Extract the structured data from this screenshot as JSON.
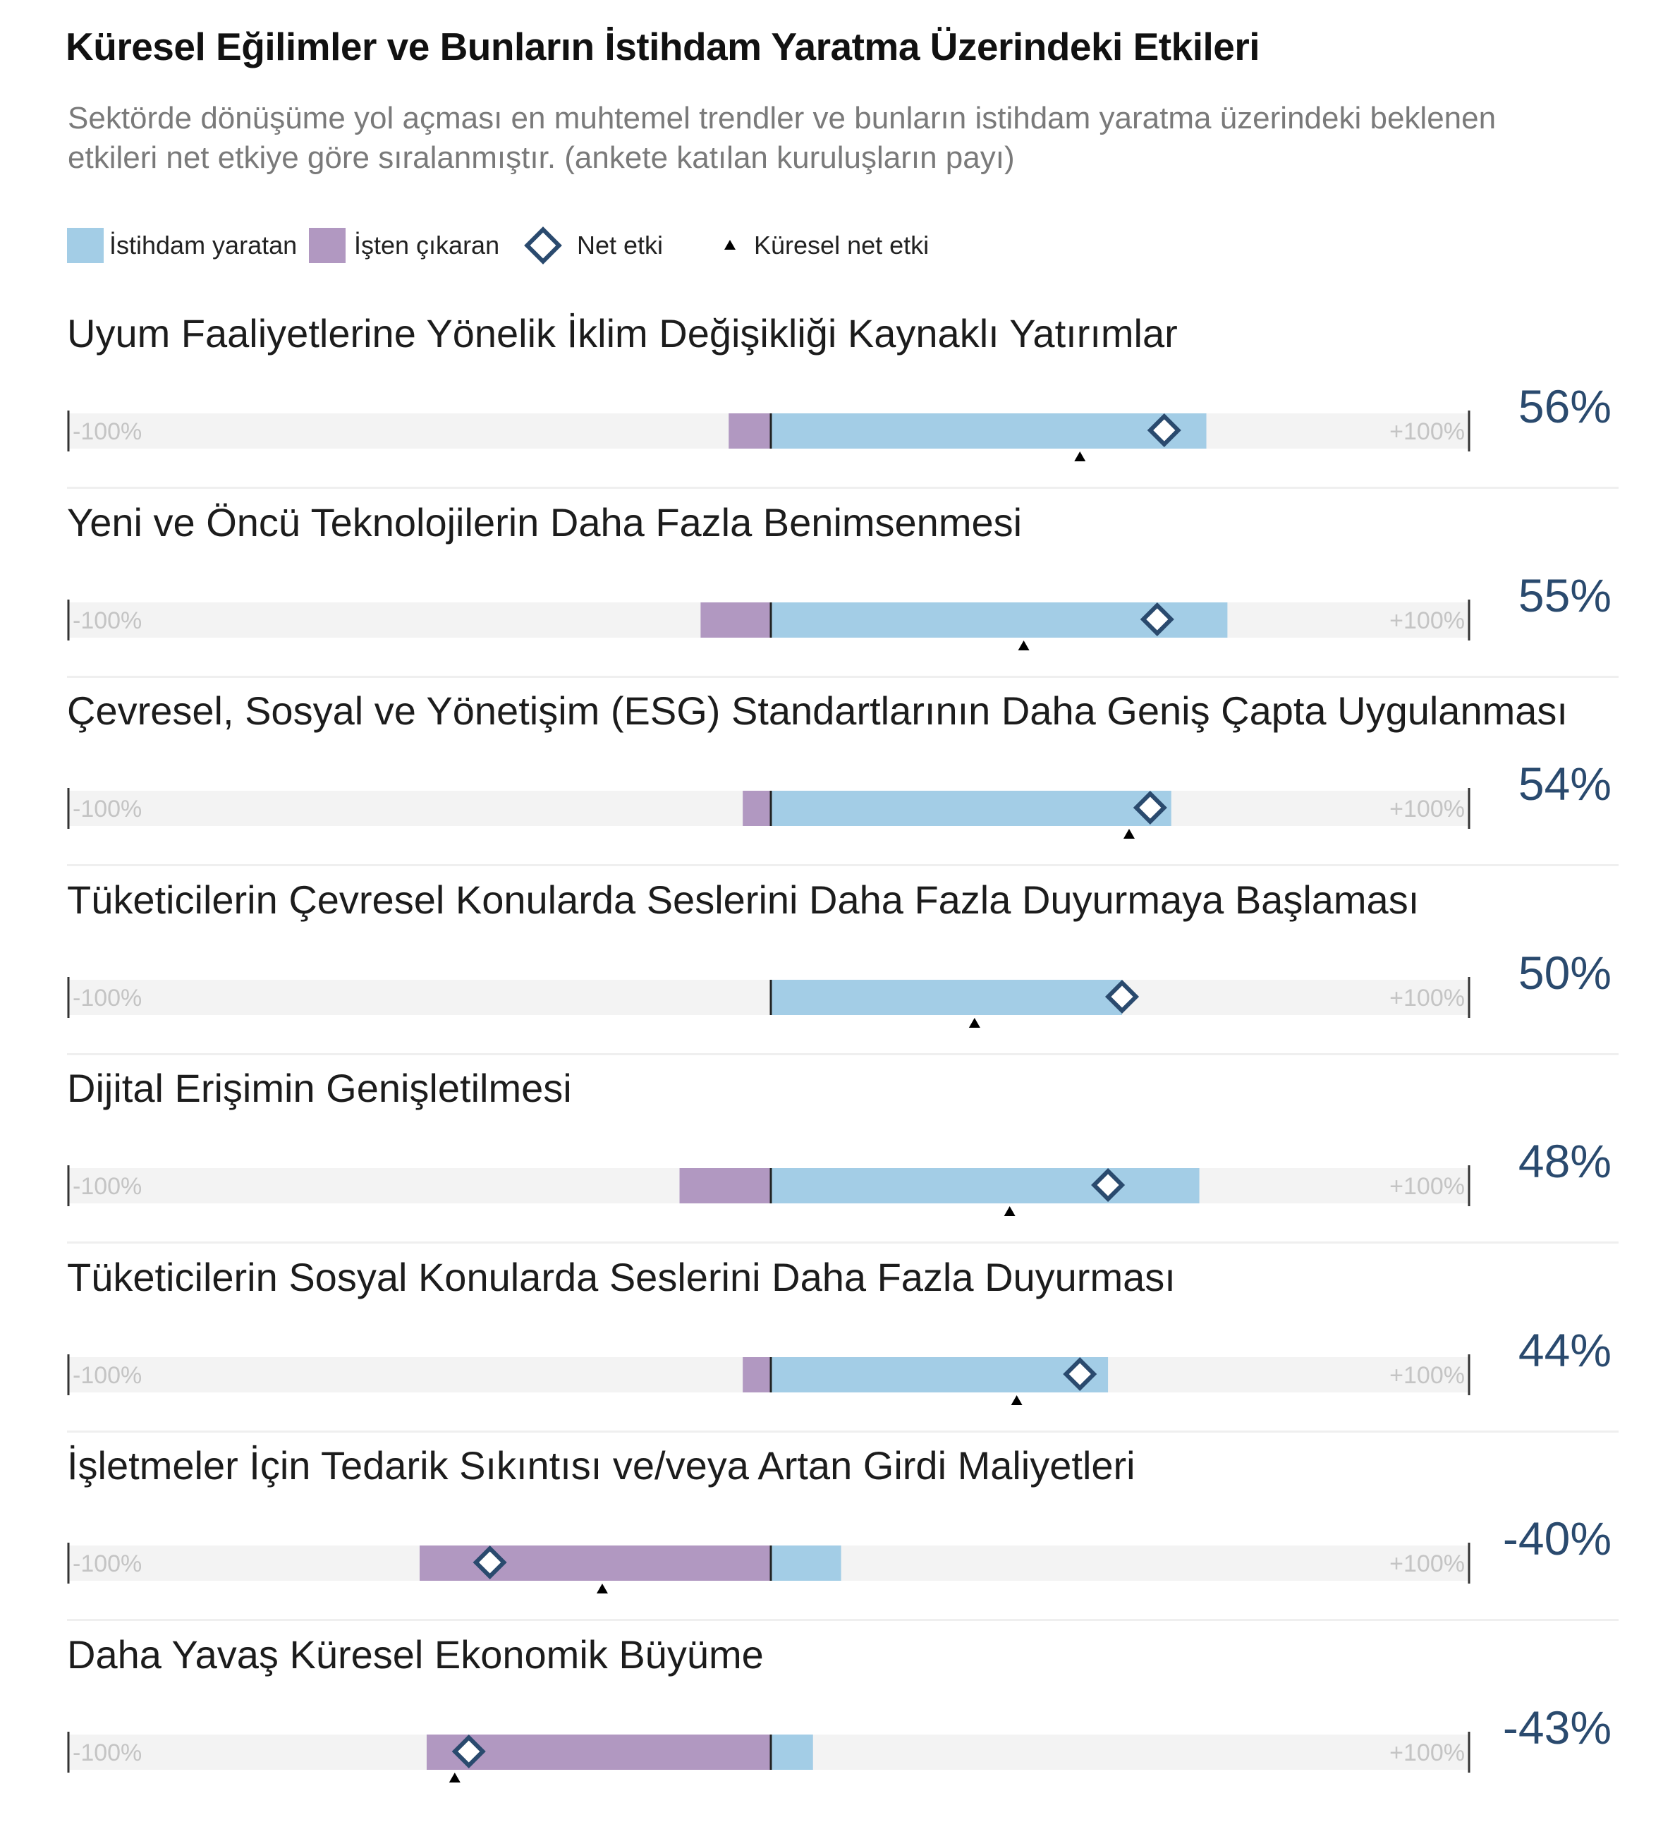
{
  "colors": {
    "creating": "#a3cde6",
    "displacing": "#b198c1",
    "track": "#f3f3f3",
    "net": "#2a4a6e",
    "global": "#000000",
    "value": "#2a4a6e"
  },
  "chart_data": {
    "type": "bar",
    "title": "Küresel Eğilimler ve Bunların İstihdam Yaratma Üzerindeki Etkileri",
    "subtitle_lines": [
      "Sektörde dönüşüme yol açması en muhtemel trendler ve bunların istihdam yaratma üzerindeki beklenen",
      "etkileri net etkiye göre sıralanmıştır. (ankete katılan kuruluşların payı)"
    ],
    "legend": [
      {
        "label": "İstihdam yaratan",
        "marker": "creating-swatch"
      },
      {
        "label": "İşten çıkaran",
        "marker": "displacing-swatch"
      },
      {
        "label": "Net etki",
        "marker": "diamond"
      },
      {
        "label": "Küresel net etki",
        "marker": "triangle"
      }
    ],
    "axis": {
      "min_label": "-100%",
      "max_label": "+100%",
      "range": [
        -100,
        100
      ]
    },
    "rows": [
      {
        "label": "Uyum Faaliyetlerine Yönelik İklim Değişikliği Kaynaklı Yatırımlar",
        "creating": 62,
        "displacing": -6,
        "net": 56,
        "global_net": 44,
        "value_label": "56%"
      },
      {
        "label": "Yeni ve Öncü Teknolojilerin Daha Fazla Benimsenmesi",
        "creating": 65,
        "displacing": -10,
        "net": 55,
        "global_net": 36,
        "value_label": "55%"
      },
      {
        "label": "Çevresel, Sosyal ve Yönetişim (ESG) Standartlarının Daha Geniş Çapta Uygulanması",
        "creating": 57,
        "displacing": -4,
        "net": 54,
        "global_net": 51,
        "value_label": "54%"
      },
      {
        "label": "Tüketicilerin Çevresel Konularda Seslerini Daha Fazla Duyurmaya Başlaması",
        "creating": 50,
        "displacing": 0,
        "net": 50,
        "global_net": 29,
        "value_label": "50%"
      },
      {
        "label": "Dijital Erişimin Genişletilmesi",
        "creating": 61,
        "displacing": -13,
        "net": 48,
        "global_net": 34,
        "value_label": "48%"
      },
      {
        "label": "Tüketicilerin Sosyal Konularda Seslerini Daha Fazla Duyurması",
        "creating": 48,
        "displacing": -4,
        "net": 44,
        "global_net": 35,
        "value_label": "44%"
      },
      {
        "label": "İşletmeler İçin Tedarik Sıkıntısı ve/veya Artan Girdi Maliyetleri",
        "creating": 10,
        "displacing": -50,
        "net": -40,
        "global_net": -24,
        "value_label": "-40%"
      },
      {
        "label": "Daha Yavaş Küresel Ekonomik Büyüme",
        "creating": 6,
        "displacing": -49,
        "net": -43,
        "global_net": -45,
        "value_label": "-43%"
      }
    ]
  }
}
